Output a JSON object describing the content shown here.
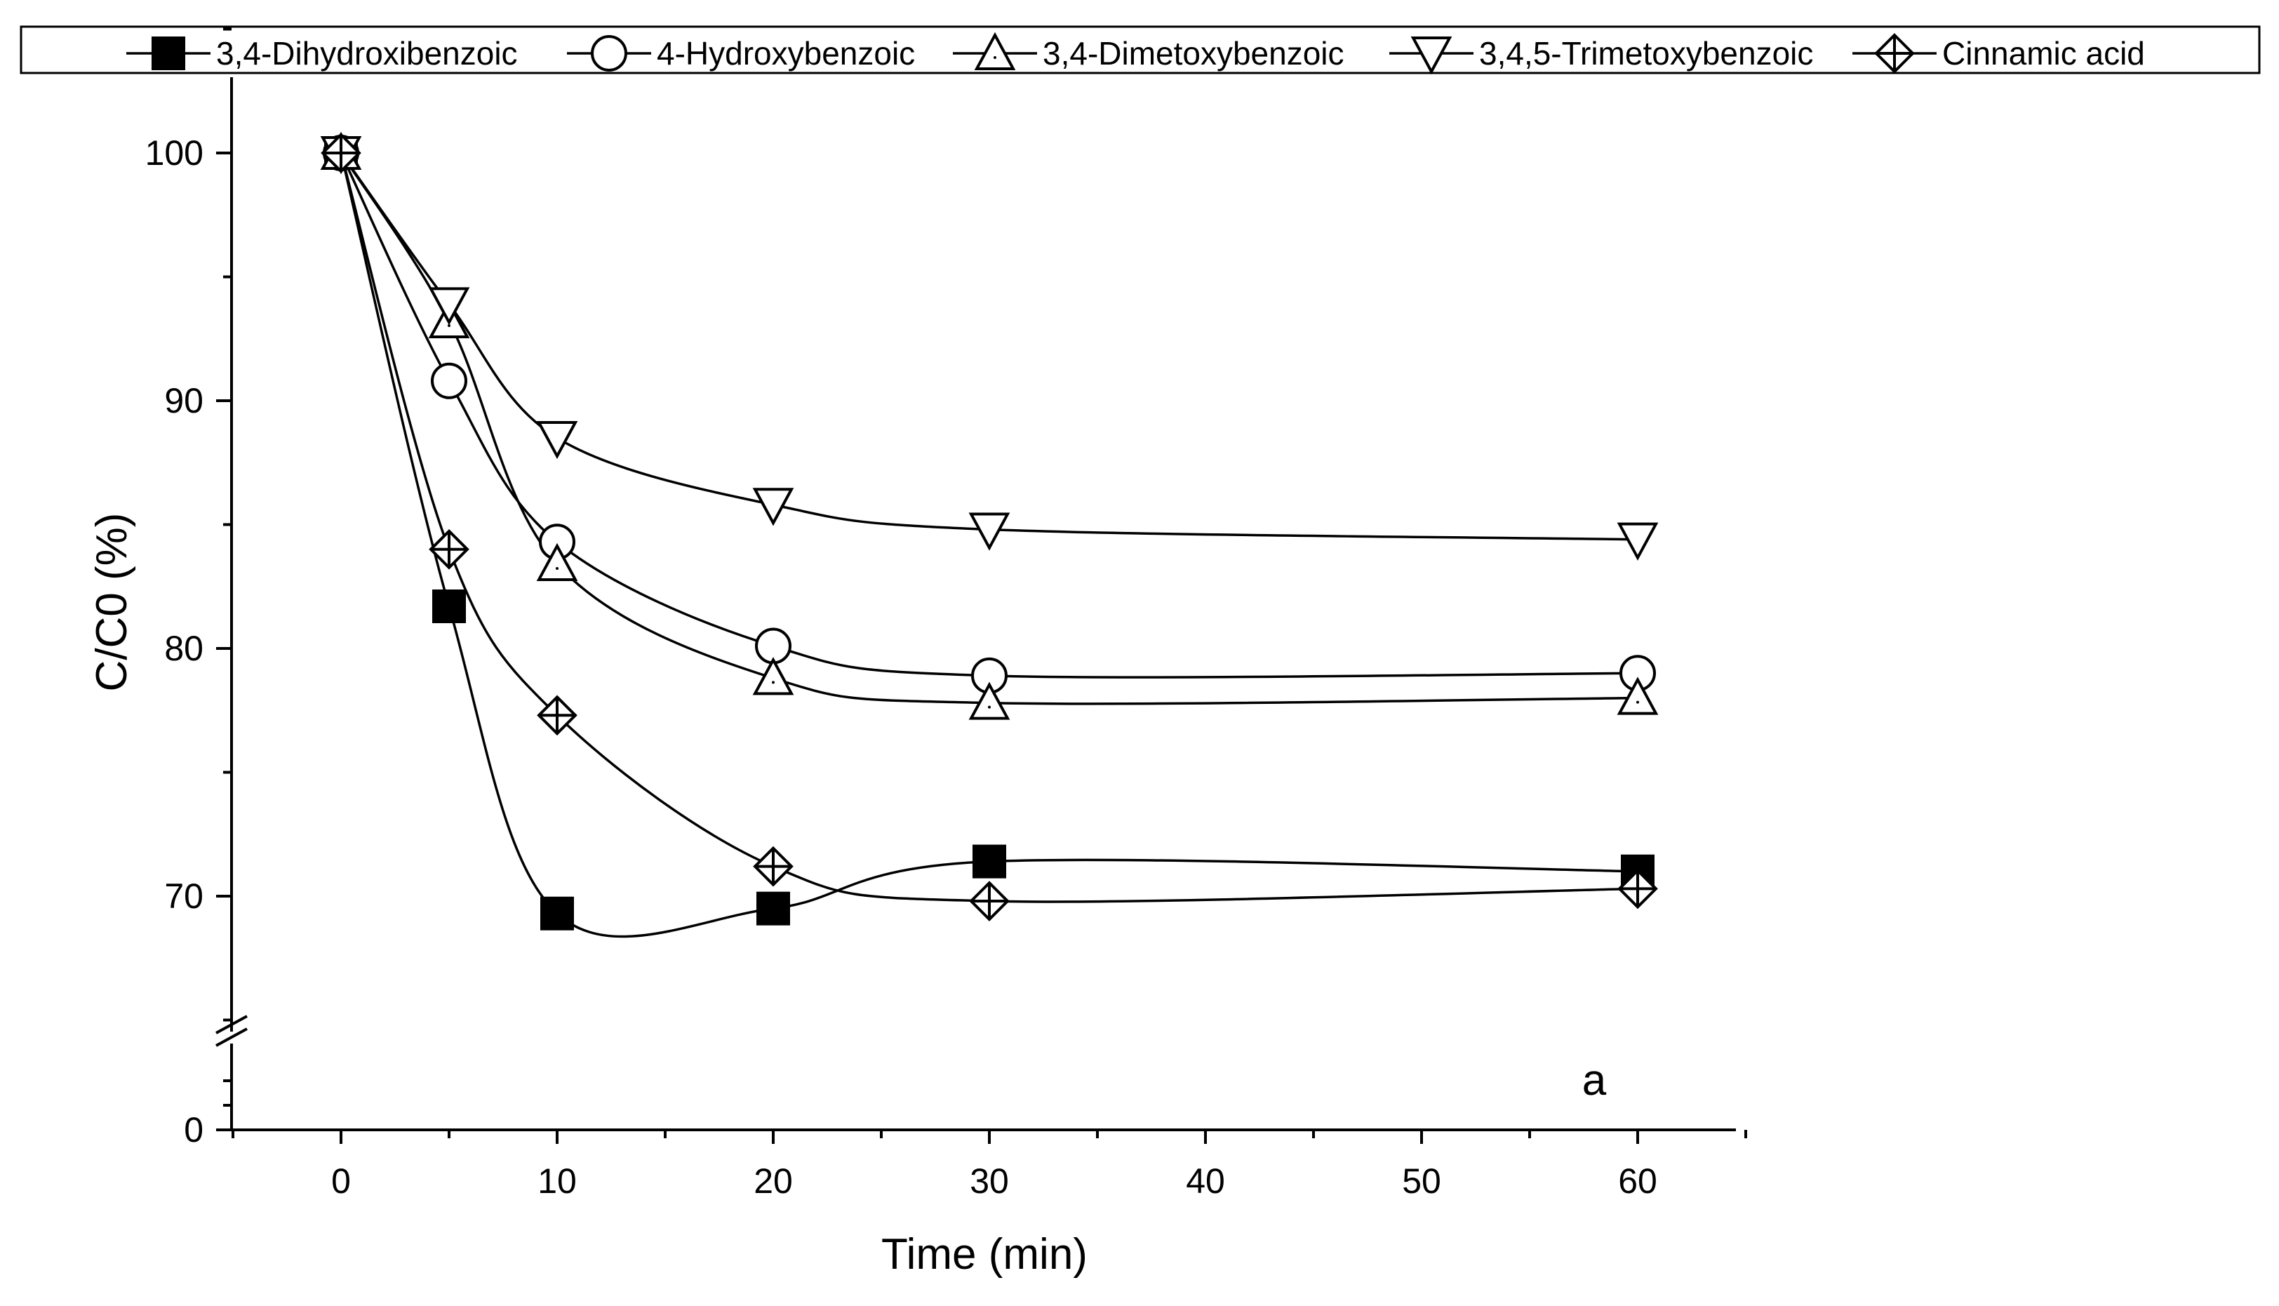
{
  "chart_data": {
    "type": "line",
    "title": "",
    "xlabel": "Time (min)",
    "ylabel": "C/C0 (%)",
    "panel_label": "a",
    "xlim": [
      -5,
      65
    ],
    "ylim_display": [
      0,
      100
    ],
    "axis_break": "y between 0 and 65",
    "x_ticks": [
      0,
      10,
      20,
      30,
      40,
      50,
      60
    ],
    "x_tick_labels": [
      "0",
      "10",
      "20",
      "30",
      "40",
      "50",
      "60"
    ],
    "y_ticks": [
      0,
      70,
      80,
      90,
      100
    ],
    "y_tick_labels": [
      "0",
      "70",
      "80",
      "90",
      "100"
    ],
    "x": [
      0,
      5,
      10,
      20,
      30,
      60
    ],
    "grid": false,
    "legend_position": "top",
    "series": [
      {
        "name": "3,4-Dihydroxibenzoic",
        "marker": "filled-square",
        "values": [
          100,
          81.7,
          69.3,
          69.5,
          71.4,
          71.0
        ]
      },
      {
        "name": "4-Hydroxybenzoic",
        "marker": "open-circle",
        "values": [
          100,
          90.8,
          84.3,
          80.1,
          78.9,
          79.0
        ]
      },
      {
        "name": "3,4-Dimetoxybenzoic",
        "marker": "open-triangle-up",
        "values": [
          100,
          93.2,
          83.4,
          78.8,
          77.8,
          78.0
        ]
      },
      {
        "name": "3,4,5-Trimetoxybenzoic",
        "marker": "open-triangle-down",
        "values": [
          100,
          93.9,
          88.5,
          85.8,
          84.8,
          84.4
        ]
      },
      {
        "name": "Cinnamic acid",
        "marker": "crossed-diamond",
        "values": [
          100,
          84.0,
          77.3,
          71.2,
          69.8,
          70.3
        ]
      }
    ]
  }
}
